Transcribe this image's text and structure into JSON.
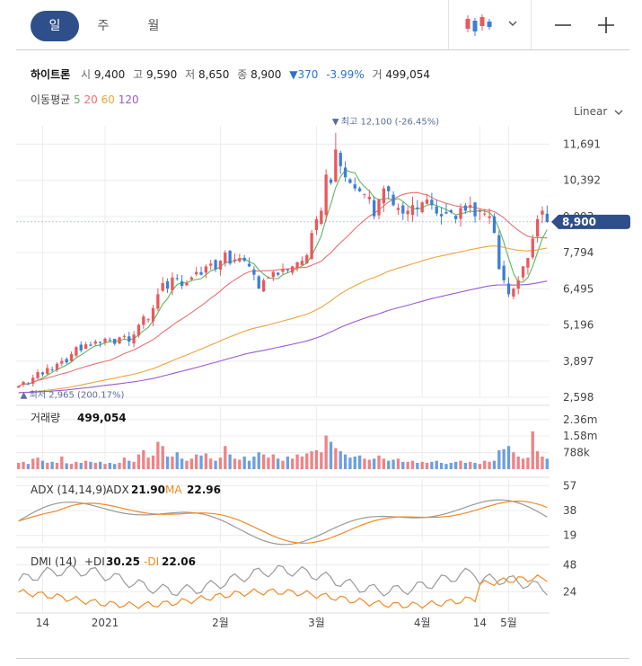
{
  "tabs": [
    {
      "label": "일",
      "active": true
    },
    {
      "label": "주",
      "active": false
    },
    {
      "label": "월",
      "active": false
    }
  ],
  "toolbar": {
    "chart_type_icon": "candlestick-icon",
    "dropdown_icon": "chevron-down-icon",
    "zoom_out_icon": "minus-icon",
    "zoom_in_icon": "plus-icon"
  },
  "stock": {
    "name": "하이트론",
    "open_label": "시",
    "open": "9,400",
    "high_label": "고",
    "high": "9,590",
    "low_label": "저",
    "low": "8,650",
    "close_label": "종",
    "close": "8,900",
    "change": "▼370",
    "change_pct": "-3.99%",
    "volume_label": "거",
    "volume": "499,054"
  },
  "ma": {
    "label": "이동평균",
    "periods": [
      "5",
      "20",
      "60",
      "120"
    ],
    "colors": [
      "#5cb85c",
      "#e8716f",
      "#f0a33c",
      "#9b59d8"
    ]
  },
  "scale": {
    "label": "Linear"
  },
  "colors": {
    "up": "#e8595d",
    "down": "#3b7fd6",
    "current": "#2f4f8a",
    "adx": "#999999",
    "ma_line": "#f08a24",
    "grid": "#ececec"
  },
  "chart_data": [
    {
      "type": "candlestick",
      "x_ticks": [
        "14",
        "2021",
        "2월",
        "3월",
        "4월",
        "14",
        "5월"
      ],
      "y_ticks": [
        "11,691",
        "10,392",
        "9,093",
        "7,794",
        "6,495",
        "5,196",
        "3,897",
        "2,598"
      ],
      "ylim": [
        2598,
        12350
      ],
      "high_marker": {
        "value": 12100,
        "label": "최고 12,100 (-26.45%)"
      },
      "low_marker": {
        "value": 2965,
        "label": "최저 2,965 (200.17%)"
      },
      "current_price": {
        "value": 8900,
        "label": "8,900"
      },
      "closes": [
        3000,
        3150,
        3080,
        3300,
        3500,
        3420,
        3650,
        3600,
        3800,
        3900,
        3850,
        4150,
        4400,
        4280,
        4500,
        4450,
        4600,
        4550,
        4700,
        4650,
        4520,
        4750,
        4800,
        4600,
        4850,
        5200,
        5500,
        5400,
        5800,
        6300,
        6700,
        6500,
        6900,
        6850,
        6600,
        6700,
        6900,
        7100,
        7000,
        7300,
        7400,
        7200,
        7500,
        7800,
        7400,
        7550,
        7600,
        7500,
        7300,
        7000,
        6500,
        6800,
        6900,
        7100,
        7000,
        7200,
        7150,
        7300,
        7450,
        7500,
        7700,
        8500,
        9000,
        9300,
        10600,
        10300,
        11500,
        10900,
        10500,
        10300,
        10100,
        10000,
        9900,
        9800,
        9100,
        9700,
        10100,
        10000,
        9500,
        9400,
        9200,
        9300,
        9500,
        9400,
        9600,
        9700,
        9500,
        9200,
        9100,
        9200,
        9250,
        9000,
        9400,
        9300,
        9500,
        9100,
        9300,
        9200,
        9100,
        8500,
        7200,
        6800,
        6300,
        6500,
        6800,
        7300,
        7600,
        8300,
        9000,
        9300,
        8900
      ]
    },
    {
      "type": "bar",
      "title": "거래량",
      "value": "499,054",
      "y_ticks": [
        "2.36m",
        "1.58m",
        "788k"
      ],
      "ylim": [
        0,
        2950000
      ],
      "values": [
        300000,
        350000,
        250000,
        500000,
        550000,
        400000,
        300000,
        350000,
        300000,
        600000,
        280000,
        250000,
        350000,
        300000,
        400000,
        350000,
        300000,
        350000,
        250000,
        300000,
        250000,
        300000,
        550000,
        400000,
        350000,
        700000,
        900000,
        550000,
        650000,
        1300000,
        1100000,
        600000,
        600000,
        800000,
        500000,
        400000,
        500000,
        700000,
        650000,
        750000,
        500000,
        400000,
        550000,
        1100000,
        700000,
        500000,
        450000,
        600000,
        400000,
        600000,
        800000,
        700000,
        550000,
        700000,
        500000,
        400000,
        600000,
        500000,
        700000,
        600000,
        750000,
        850000,
        900000,
        800000,
        1600000,
        1300000,
        1000000,
        850000,
        700000,
        550000,
        600000,
        650000,
        500000,
        450000,
        500000,
        650000,
        500000,
        400000,
        450000,
        500000,
        350000,
        350000,
        400000,
        300000,
        350000,
        300000,
        350000,
        400000,
        300000,
        250000,
        300000,
        350000,
        400000,
        300000,
        350000,
        300000,
        250000,
        400000,
        350000,
        400000,
        900000,
        950000,
        1100000,
        800000,
        600000,
        500000,
        550000,
        1800000,
        850000,
        600000,
        499054
      ]
    },
    {
      "type": "line",
      "title": "ADX (14,14,9)",
      "series": [
        {
          "name": "ADX",
          "value": "21.90"
        },
        {
          "name": "MA",
          "value": "22.96"
        }
      ],
      "y_ticks": [
        "57",
        "38",
        "19"
      ],
      "ylim": [
        14,
        62
      ]
    },
    {
      "type": "line",
      "title": "DMI (14)",
      "series": [
        {
          "name": "+DI",
          "value": "30.25"
        },
        {
          "name": "-DI",
          "value": "22.06"
        }
      ],
      "y_ticks": [
        "48",
        "24"
      ],
      "ylim": [
        5,
        62
      ]
    }
  ]
}
